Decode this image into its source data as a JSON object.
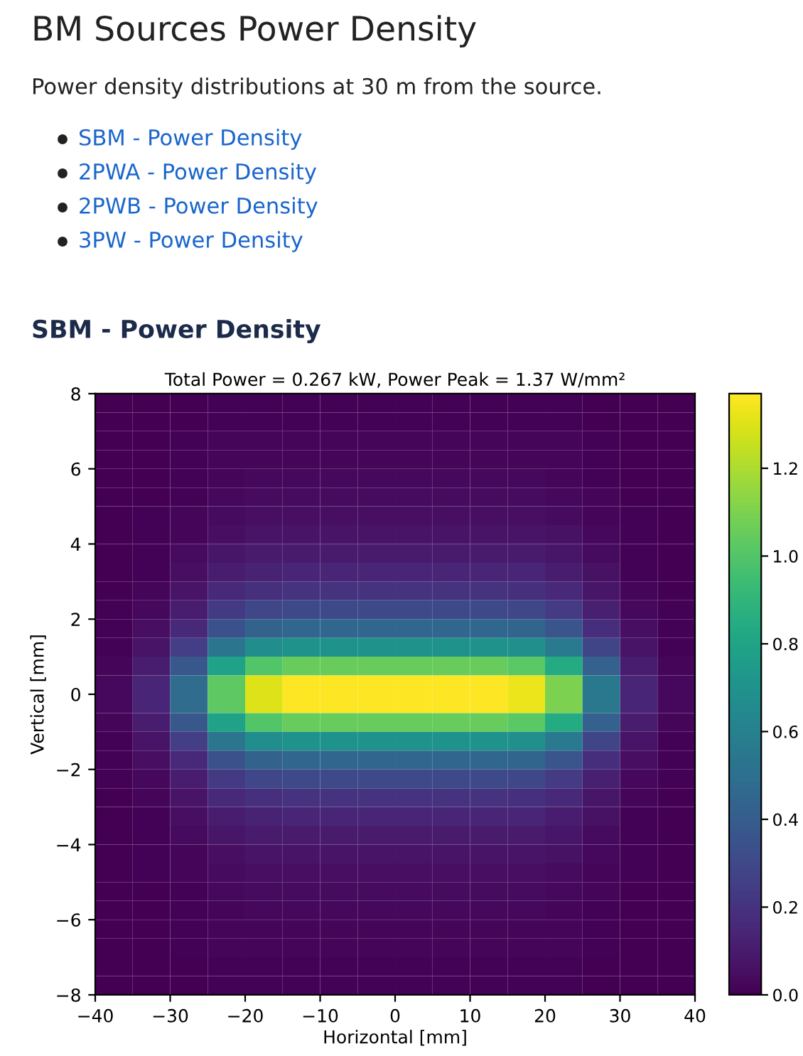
{
  "chart_data": {
    "type": "heatmap",
    "title": "Total Power = 0.267 kW, Power Peak = 1.37 W/mm²",
    "annotations": [
      "BM Sources Power Density",
      "Power density distributions at 30 m from the source.",
      "SBM - Power Density",
      "2PWA - Power Density",
      "2PWB - Power Density",
      "3PW - Power Density",
      "SBM - Power Density"
    ],
    "xlabel": "Horizontal [mm]",
    "ylabel": "Vertical [mm]",
    "xlim": [
      -40,
      40
    ],
    "ylim": [
      -8,
      8
    ],
    "xticks": [
      {
        "value": -40,
        "label": "−40"
      },
      {
        "value": -30,
        "label": "−30"
      },
      {
        "value": -20,
        "label": "−20"
      },
      {
        "value": -10,
        "label": "−10"
      },
      0,
      10,
      20,
      30,
      40
    ],
    "yticks": [
      {
        "value": -8,
        "label": "−8"
      },
      {
        "value": -6,
        "label": "−6"
      },
      {
        "value": -4,
        "label": "−4"
      },
      {
        "value": -2,
        "label": "−2"
      },
      0,
      2,
      4,
      6,
      8
    ],
    "clim": [
      0,
      1.37
    ],
    "cticks": [
      {
        "value": 0,
        "label": "0.0"
      },
      {
        "value": 0.2,
        "label": "0.2"
      },
      {
        "value": 0.4,
        "label": "0.4"
      },
      {
        "value": 0.6,
        "label": "0.6"
      },
      {
        "value": 0.8,
        "label": "0.8"
      },
      {
        "value": 1.0,
        "label": "1.0"
      },
      {
        "value": 1.2,
        "label": "1.2"
      }
    ],
    "cells": [
      [
        0,
        0,
        0,
        0.01,
        0.01,
        0.01,
        0.01,
        0.01,
        0.01,
        0.01,
        0.01,
        0.01,
        0.01,
        0,
        0,
        0
      ],
      [
        0,
        0,
        0,
        0.01,
        0.01,
        0.01,
        0.01,
        0.01,
        0.01,
        0.01,
        0.01,
        0.01,
        0.01,
        0,
        0,
        0
      ],
      [
        0,
        0,
        0.01,
        0.02,
        0.02,
        0.02,
        0.02,
        0.02,
        0.02,
        0.02,
        0.02,
        0.02,
        0.02,
        0.01,
        0,
        0
      ],
      [
        0,
        0,
        0.01,
        0.02,
        0.02,
        0.02,
        0.02,
        0.02,
        0.02,
        0.02,
        0.02,
        0.02,
        0.02,
        0.01,
        0,
        0
      ],
      [
        0,
        0,
        0.01,
        0.02,
        0.03,
        0.03,
        0.03,
        0.03,
        0.03,
        0.03,
        0.03,
        0.03,
        0.02,
        0.01,
        0,
        0
      ],
      [
        0,
        0,
        0.01,
        0.03,
        0.04,
        0.04,
        0.04,
        0.04,
        0.04,
        0.04,
        0.04,
        0.04,
        0.03,
        0.02,
        0,
        0
      ],
      [
        0,
        0.01,
        0.02,
        0.04,
        0.05,
        0.05,
        0.05,
        0.05,
        0.05,
        0.05,
        0.05,
        0.05,
        0.04,
        0.02,
        0.01,
        0
      ],
      [
        0,
        0.01,
        0.02,
        0.05,
        0.07,
        0.07,
        0.07,
        0.07,
        0.07,
        0.07,
        0.07,
        0.07,
        0.06,
        0.03,
        0.01,
        0
      ],
      [
        0,
        0.01,
        0.04,
        0.08,
        0.1,
        0.1,
        0.1,
        0.1,
        0.1,
        0.1,
        0.1,
        0.1,
        0.08,
        0.04,
        0.01,
        0
      ],
      [
        0,
        0.01,
        0.05,
        0.11,
        0.13,
        0.14,
        0.14,
        0.14,
        0.14,
        0.14,
        0.14,
        0.14,
        0.11,
        0.06,
        0.01,
        0
      ],
      [
        0,
        0.02,
        0.07,
        0.15,
        0.19,
        0.2,
        0.2,
        0.2,
        0.2,
        0.2,
        0.2,
        0.19,
        0.16,
        0.08,
        0.02,
        0
      ],
      [
        0.01,
        0.03,
        0.11,
        0.23,
        0.29,
        0.3,
        0.3,
        0.3,
        0.3,
        0.3,
        0.3,
        0.29,
        0.24,
        0.12,
        0.03,
        0.01
      ],
      [
        0.01,
        0.05,
        0.16,
        0.34,
        0.43,
        0.45,
        0.45,
        0.45,
        0.45,
        0.45,
        0.45,
        0.44,
        0.36,
        0.18,
        0.05,
        0.01
      ],
      [
        0.01,
        0.07,
        0.25,
        0.53,
        0.67,
        0.7,
        0.7,
        0.7,
        0.7,
        0.7,
        0.7,
        0.68,
        0.56,
        0.28,
        0.07,
        0.01
      ],
      [
        0.02,
        0.11,
        0.37,
        0.79,
        1.0,
        1.05,
        1.05,
        1.05,
        1.05,
        1.05,
        1.05,
        1.02,
        0.84,
        0.42,
        0.11,
        0.02
      ],
      [
        0.03,
        0.14,
        0.48,
        1.03,
        1.3,
        1.37,
        1.37,
        1.37,
        1.37,
        1.37,
        1.37,
        1.33,
        1.1,
        0.55,
        0.14,
        0.03
      ],
      [
        0.03,
        0.14,
        0.48,
        1.03,
        1.3,
        1.37,
        1.37,
        1.37,
        1.37,
        1.37,
        1.37,
        1.33,
        1.1,
        0.55,
        0.14,
        0.03
      ],
      [
        0.02,
        0.11,
        0.37,
        0.79,
        1.0,
        1.05,
        1.05,
        1.05,
        1.05,
        1.05,
        1.05,
        1.02,
        0.84,
        0.42,
        0.11,
        0.02
      ],
      [
        0.01,
        0.07,
        0.25,
        0.53,
        0.67,
        0.7,
        0.7,
        0.7,
        0.7,
        0.7,
        0.7,
        0.68,
        0.56,
        0.28,
        0.07,
        0.01
      ],
      [
        0.01,
        0.05,
        0.16,
        0.34,
        0.43,
        0.45,
        0.45,
        0.45,
        0.45,
        0.45,
        0.45,
        0.44,
        0.36,
        0.18,
        0.05,
        0.01
      ],
      [
        0.01,
        0.03,
        0.11,
        0.23,
        0.29,
        0.3,
        0.3,
        0.3,
        0.3,
        0.3,
        0.3,
        0.29,
        0.24,
        0.12,
        0.03,
        0.01
      ],
      [
        0,
        0.02,
        0.07,
        0.15,
        0.19,
        0.2,
        0.2,
        0.2,
        0.2,
        0.2,
        0.2,
        0.19,
        0.16,
        0.08,
        0.02,
        0
      ],
      [
        0,
        0.01,
        0.05,
        0.11,
        0.13,
        0.14,
        0.14,
        0.14,
        0.14,
        0.14,
        0.14,
        0.14,
        0.11,
        0.06,
        0.01,
        0
      ],
      [
        0,
        0.01,
        0.04,
        0.08,
        0.1,
        0.1,
        0.1,
        0.1,
        0.1,
        0.1,
        0.1,
        0.1,
        0.08,
        0.04,
        0.01,
        0
      ],
      [
        0,
        0.01,
        0.02,
        0.05,
        0.07,
        0.07,
        0.07,
        0.07,
        0.07,
        0.07,
        0.07,
        0.07,
        0.06,
        0.03,
        0.01,
        0
      ],
      [
        0,
        0.01,
        0.02,
        0.04,
        0.05,
        0.05,
        0.05,
        0.05,
        0.05,
        0.05,
        0.05,
        0.05,
        0.04,
        0.02,
        0.01,
        0
      ],
      [
        0,
        0,
        0.01,
        0.03,
        0.04,
        0.04,
        0.04,
        0.04,
        0.04,
        0.04,
        0.04,
        0.04,
        0.03,
        0.02,
        0,
        0
      ],
      [
        0,
        0,
        0.01,
        0.02,
        0.03,
        0.03,
        0.03,
        0.03,
        0.03,
        0.03,
        0.03,
        0.03,
        0.02,
        0.01,
        0,
        0
      ],
      [
        0,
        0,
        0.01,
        0.02,
        0.02,
        0.02,
        0.02,
        0.02,
        0.02,
        0.02,
        0.02,
        0.02,
        0.02,
        0.01,
        0,
        0
      ],
      [
        0,
        0,
        0.01,
        0.02,
        0.02,
        0.02,
        0.02,
        0.02,
        0.02,
        0.02,
        0.02,
        0.02,
        0.02,
        0.01,
        0,
        0
      ],
      [
        0,
        0,
        0,
        0.01,
        0.01,
        0.01,
        0.01,
        0.01,
        0.01,
        0.01,
        0.01,
        0.01,
        0.01,
        0,
        0,
        0
      ],
      [
        0,
        0,
        0,
        0.01,
        0.01,
        0.01,
        0.01,
        0.01,
        0.01,
        0.01,
        0.01,
        0.01,
        0.01,
        0,
        0,
        0
      ]
    ]
  }
}
